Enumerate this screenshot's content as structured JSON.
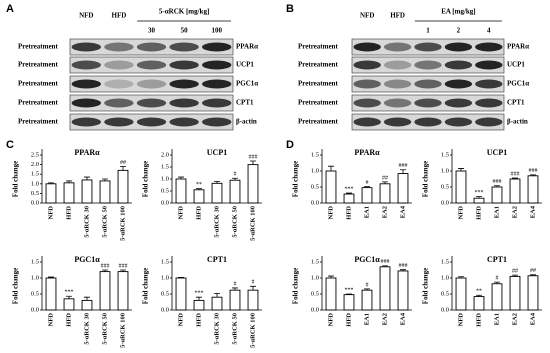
{
  "panel_letters": [
    "A",
    "B",
    "C",
    "D"
  ],
  "blots": [
    {
      "group_label": "5-αRCK [mg/kg]",
      "lanes": [
        "NFD",
        "HFD",
        "30",
        "50",
        "100"
      ],
      "rows": [
        {
          "left": "Pretreatment",
          "right": "PPARα"
        },
        {
          "left": "Pretreatment",
          "right": "UCP1"
        },
        {
          "left": "Pretreatment",
          "right": "PGC1α"
        },
        {
          "left": "Pretreatment",
          "right": "CPT1"
        },
        {
          "left": "Pretreatment",
          "right": "β-actin"
        }
      ]
    },
    {
      "group_label": "EA [mg/kg]",
      "lanes": [
        "NFD",
        "HFD",
        "1",
        "2",
        "4"
      ],
      "rows": [
        {
          "left": "Pretreatment",
          "right": "PPARα"
        },
        {
          "left": "Pretreatment",
          "right": "UCP1"
        },
        {
          "left": "Pretreatment",
          "right": "PGC1α"
        },
        {
          "left": "Pretreatment",
          "right": "CPT1"
        },
        {
          "left": "Pretreatment",
          "right": "β-actin"
        }
      ]
    }
  ],
  "chart_data": [
    {
      "type": "bar",
      "title": "PPARα",
      "y_label": "Fold change",
      "categories": [
        "NFD",
        "HFD",
        "5-αRCK 30",
        "5-αRCK 50",
        "5-αRCK 100"
      ],
      "values": [
        1.0,
        1.05,
        1.2,
        1.15,
        1.7
      ],
      "errors": [
        0.05,
        0.1,
        0.15,
        0.1,
        0.2
      ],
      "annotations": [
        null,
        null,
        null,
        null,
        "##"
      ],
      "ylim": [
        0,
        2.5
      ],
      "yticks": [
        {
          "value": 0,
          "label": "0.0"
        },
        0.5,
        {
          "value": 1,
          "label": "1.0"
        },
        1.5,
        {
          "value": 2,
          "label": "2.0"
        },
        2.5
      ],
      "color": "#ffffff"
    },
    {
      "type": "bar",
      "title": "UCP1",
      "y_label": "Fold change",
      "categories": [
        "NFD",
        "HFD",
        "5-αRCK 30",
        "5-αRCK 50",
        "5-αRCK 100"
      ],
      "values": [
        1.0,
        0.55,
        0.82,
        0.95,
        1.6
      ],
      "errors": [
        0.08,
        0.05,
        0.08,
        0.08,
        0.15
      ],
      "annotations": [
        null,
        "**",
        null,
        "#",
        "###"
      ],
      "ylim": [
        0,
        2.0
      ],
      "yticks": [
        {
          "value": 0,
          "label": "0.0"
        },
        0.5,
        {
          "value": 1,
          "label": "1.0"
        },
        1.5,
        {
          "value": 2,
          "label": "2.0"
        }
      ],
      "color": "#ffffff"
    },
    {
      "type": "bar",
      "title": "PGC1α",
      "y_label": "Fold change",
      "categories": [
        "NFD",
        "HFD",
        "5-αRCK 30",
        "5-αRCK 50",
        "5-αRCK 100"
      ],
      "values": [
        1.0,
        0.35,
        0.3,
        1.2,
        1.2
      ],
      "errors": [
        0.03,
        0.08,
        0.1,
        0.05,
        0.05
      ],
      "annotations": [
        null,
        "***",
        null,
        "###",
        "###"
      ],
      "ylim": [
        0,
        1.5
      ],
      "yticks": [
        {
          "value": 0,
          "label": "0.0"
        },
        0.5,
        {
          "value": 1,
          "label": "1.0"
        },
        1.5
      ],
      "color": "#ffffff"
    },
    {
      "type": "bar",
      "title": "CPT1",
      "y_label": "Fold change",
      "categories": [
        "NFD",
        "HFD",
        "5-αRCK 30",
        "5-αRCK 50",
        "5-αRCK 100"
      ],
      "values": [
        1.0,
        0.3,
        0.4,
        0.62,
        0.62
      ],
      "errors": [
        0.02,
        0.1,
        0.12,
        0.07,
        0.12
      ],
      "annotations": [
        null,
        "***",
        null,
        "#",
        "#"
      ],
      "ylim": [
        0,
        1.5
      ],
      "yticks": [
        {
          "value": 0,
          "label": "0.0"
        },
        0.5,
        {
          "value": 1,
          "label": "1.0"
        },
        1.5
      ],
      "color": "#ffffff"
    },
    {
      "type": "bar",
      "title": "PPARα",
      "y_label": "Fold change",
      "categories": [
        "NFD",
        "HFD",
        "EA1",
        "EA2",
        "EA4"
      ],
      "values": [
        1.0,
        0.28,
        0.48,
        0.6,
        0.92
      ],
      "errors": [
        0.15,
        0.03,
        0.03,
        0.06,
        0.12
      ],
      "annotations": [
        null,
        "***",
        "#",
        "##",
        "###"
      ],
      "ylim": [
        0,
        1.5
      ],
      "yticks": [
        {
          "value": 0,
          "label": "0.0"
        },
        0.5,
        {
          "value": 1,
          "label": "1.0"
        },
        1.5
      ],
      "color": "#ffffff"
    },
    {
      "type": "bar",
      "title": "UCP1",
      "y_label": "Fold change",
      "categories": [
        "NFD",
        "HFD",
        "EA1",
        "EA2",
        "EA4"
      ],
      "values": [
        1.0,
        0.15,
        0.5,
        0.75,
        0.85
      ],
      "errors": [
        0.08,
        0.05,
        0.04,
        0.03,
        0.03
      ],
      "annotations": [
        null,
        "***",
        "###",
        "###",
        "###"
      ],
      "ylim": [
        0,
        1.5
      ],
      "yticks": [
        {
          "value": 0,
          "label": "0.0"
        },
        0.5,
        {
          "value": 1,
          "label": "1.0"
        },
        1.5
      ],
      "color": "#ffffff"
    },
    {
      "type": "bar",
      "title": "PGC1α",
      "y_label": "Fold change",
      "categories": [
        "NFD",
        "HFD",
        "EA1",
        "EA2",
        "EA4"
      ],
      "values": [
        1.0,
        0.48,
        0.62,
        1.35,
        1.22
      ],
      "errors": [
        0.06,
        0.02,
        0.04,
        0.03,
        0.04
      ],
      "annotations": [
        null,
        "***",
        "#",
        "###",
        "###"
      ],
      "ylim": [
        0,
        1.5
      ],
      "yticks": [
        {
          "value": 0,
          "label": "0.0"
        },
        0.5,
        {
          "value": 1,
          "label": "1.0"
        },
        1.5
      ],
      "color": "#ffffff"
    },
    {
      "type": "bar",
      "title": "CPT1",
      "y_label": "Fold change",
      "categories": [
        "NFD",
        "HFD",
        "EA1",
        "EA2",
        "EA4"
      ],
      "values": [
        1.0,
        0.42,
        0.82,
        1.05,
        1.07
      ],
      "errors": [
        0.04,
        0.04,
        0.05,
        0.04,
        0.03
      ],
      "annotations": [
        null,
        "**",
        "#",
        "##",
        "##"
      ],
      "ylim": [
        0,
        1.5
      ],
      "yticks": [
        {
          "value": 0,
          "label": "0.0"
        },
        0.5,
        {
          "value": 1,
          "label": "1.0"
        },
        1.5
      ],
      "color": "#ffffff"
    }
  ]
}
